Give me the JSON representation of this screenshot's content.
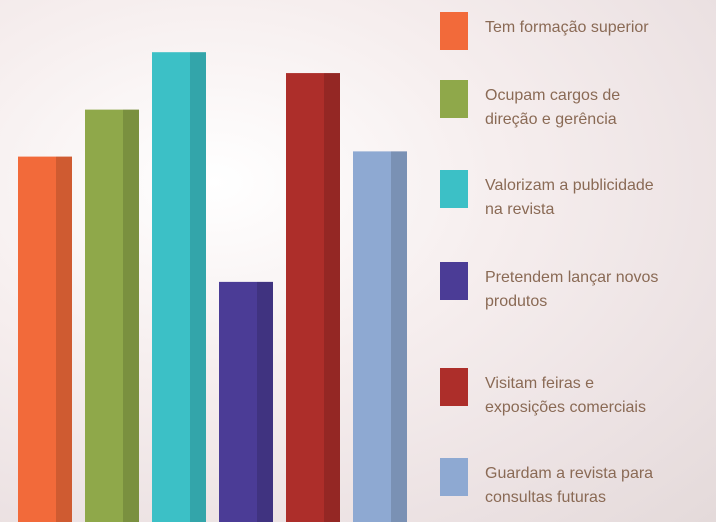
{
  "chart_data": {
    "type": "bar",
    "categories": [
      "Tem formação superior",
      "Ocupam cargos de direção e gerência",
      "Valorizam a publicidade na revista",
      "Pretendem lançar novos produtos",
      "Visitam feiras e exposições comerciais",
      "Guardam a revista para consultas futuras"
    ],
    "values": [
      70,
      79,
      90,
      46,
      86,
      71
    ],
    "colors": [
      "#f26a3a",
      "#8fa84a",
      "#3cc0c6",
      "#4b3c96",
      "#ad2e2a",
      "#8ea9d2"
    ],
    "ylim": [
      0,
      100
    ]
  }
}
